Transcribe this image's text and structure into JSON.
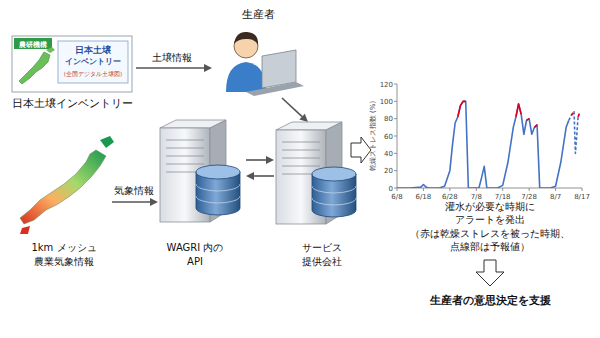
{
  "soil_inventory": {
    "label": "日本土壌インベントリー",
    "logo": "農研機構",
    "screen_title": [
      "日本土壌",
      "インベントリー"
    ],
    "screen_subtitle": "(全国デジタル土壌図)"
  },
  "farmer": {
    "label": "生産者"
  },
  "weather": {
    "label": [
      "1km メッシュ",
      "農業気象情報"
    ]
  },
  "wagri": {
    "label": [
      "WAGRI 内の",
      "API"
    ]
  },
  "service": {
    "label": [
      "サービス",
      "提供会社"
    ]
  },
  "edges": [
    {
      "label": "土壌情報"
    },
    {
      "label": "気象情報"
    }
  ],
  "chart_data": {
    "type": "line",
    "ylabel": "乾燥ストレス指数 (%)",
    "x": [
      0,
      5,
      9,
      10,
      11,
      12,
      16,
      18,
      20,
      21,
      22,
      23,
      24,
      25,
      26,
      27,
      31,
      32,
      33,
      34,
      38,
      40,
      42,
      44,
      45,
      46,
      47,
      48,
      49,
      50,
      51,
      52,
      53,
      54,
      58,
      60,
      62,
      64,
      65,
      66,
      67,
      67.5,
      68,
      68.5,
      69
    ],
    "xlim": [
      0,
      70
    ],
    "xticks": [
      {
        "value": 0,
        "label": "6/8"
      },
      {
        "value": 10,
        "label": "6/18"
      },
      {
        "value": 20,
        "label": "6/28"
      },
      {
        "value": 30,
        "label": "7/8"
      },
      {
        "value": 40,
        "label": "7/18"
      },
      {
        "value": 50,
        "label": "7/28"
      },
      {
        "value": 60,
        "label": "8/7"
      },
      {
        "value": 70,
        "label": "8/17"
      }
    ],
    "ylim": [
      0,
      120
    ],
    "yticks": [
      0,
      20,
      40,
      60,
      80,
      100,
      120
    ],
    "grid": false,
    "series": [
      {
        "color": "#4472c4",
        "line_style": "solid",
        "values": [
          0,
          0,
          1,
          4,
          1,
          0,
          0,
          2,
          20,
          50,
          75,
          82,
          95,
          100,
          100,
          0,
          0,
          12,
          25,
          0,
          0,
          3,
          30,
          70,
          82,
          97,
          85,
          62,
          78,
          80,
          62,
          70,
          73,
          0,
          0,
          2,
          30,
          70,
          78,
          null,
          null,
          null,
          null,
          null,
          null
        ]
      },
      {
        "color": "#e0001b",
        "line_style": "solid",
        "values": [
          null,
          null,
          null,
          null,
          null,
          null,
          null,
          null,
          null,
          null,
          null,
          82,
          95,
          100,
          100,
          null,
          null,
          null,
          null,
          null,
          null,
          null,
          null,
          null,
          82,
          97,
          85,
          null,
          78,
          80,
          null,
          70,
          73,
          null,
          null,
          null,
          null,
          null,
          null,
          null,
          null,
          null,
          null,
          null,
          null
        ]
      },
      {
        "color": "#4472c4",
        "line_style": "dashed",
        "values": [
          null,
          null,
          null,
          null,
          null,
          null,
          null,
          null,
          null,
          null,
          null,
          null,
          null,
          null,
          null,
          null,
          null,
          null,
          null,
          null,
          null,
          null,
          null,
          null,
          null,
          null,
          null,
          null,
          null,
          null,
          null,
          null,
          null,
          null,
          null,
          null,
          null,
          null,
          78,
          84,
          88,
          40,
          60,
          82,
          86
        ]
      },
      {
        "color": "#e0001b",
        "line_style": "dashed",
        "values": [
          null,
          null,
          null,
          null,
          null,
          null,
          null,
          null,
          null,
          null,
          null,
          null,
          null,
          null,
          null,
          null,
          null,
          null,
          null,
          null,
          null,
          null,
          null,
          null,
          null,
          null,
          null,
          null,
          null,
          null,
          null,
          null,
          null,
          null,
          null,
          null,
          null,
          null,
          null,
          84,
          88,
          null,
          null,
          82,
          86
        ]
      }
    ]
  },
  "caption": [
    "灌水が必要な時期に",
    "アラートを発出",
    "（赤は乾燥ストレスを被った時期、",
    "点線部は予報値）"
  ],
  "conclusion": "生産者の意思決定を支援"
}
